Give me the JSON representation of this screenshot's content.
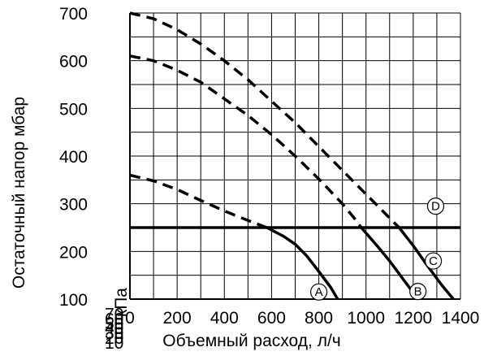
{
  "chart_data": {
    "type": "line",
    "title": "",
    "xlabel": "Объемный расход, л/ч",
    "ylabel": "Остаточный напор мбар",
    "ylabel_kpa": "кПа",
    "xlim": [
      0,
      1400
    ],
    "ylim": [
      100,
      700
    ],
    "x_ticks": [
      0,
      200,
      400,
      600,
      800,
      1000,
      1200,
      1400
    ],
    "y_ticks_mbar": [
      100,
      200,
      300,
      400,
      500,
      600,
      700
    ],
    "y_ticks_kpa": [
      10,
      20,
      30,
      40,
      50,
      60,
      70
    ],
    "grid": true,
    "threshold": {
      "y": 250,
      "style": "solid"
    },
    "series": [
      {
        "name": "A",
        "label_at": {
          "x": 800,
          "y": 115
        },
        "points": [
          [
            0,
            360
          ],
          [
            100,
            348
          ],
          [
            200,
            330
          ],
          [
            300,
            307
          ],
          [
            400,
            285
          ],
          [
            500,
            265
          ],
          [
            580,
            250
          ],
          [
            650,
            232
          ],
          [
            700,
            215
          ],
          [
            750,
            190
          ],
          [
            800,
            158
          ],
          [
            850,
            125
          ],
          [
            880,
            100
          ]
        ],
        "dashed_until_x": 580
      },
      {
        "name": "B",
        "label_at": {
          "x": 1220,
          "y": 116
        },
        "points": [
          [
            0,
            610
          ],
          [
            100,
            600
          ],
          [
            200,
            580
          ],
          [
            300,
            555
          ],
          [
            400,
            520
          ],
          [
            500,
            485
          ],
          [
            600,
            445
          ],
          [
            700,
            400
          ],
          [
            800,
            352
          ],
          [
            900,
            300
          ],
          [
            950,
            270
          ],
          [
            980,
            250
          ],
          [
            1050,
            210
          ],
          [
            1100,
            180
          ],
          [
            1160,
            140
          ],
          [
            1220,
            100
          ]
        ],
        "dashed_until_x": 980
      },
      {
        "name": "C",
        "label_at": {
          "x": 1285,
          "y": 180
        },
        "points": [
          [
            0,
            700
          ],
          [
            100,
            688
          ],
          [
            200,
            665
          ],
          [
            300,
            635
          ],
          [
            400,
            600
          ],
          [
            500,
            560
          ],
          [
            600,
            515
          ],
          [
            700,
            470
          ],
          [
            800,
            420
          ],
          [
            900,
            370
          ],
          [
            1000,
            320
          ],
          [
            1080,
            280
          ],
          [
            1140,
            250
          ],
          [
            1200,
            212
          ],
          [
            1260,
            170
          ],
          [
            1320,
            130
          ],
          [
            1370,
            100
          ]
        ],
        "dashed_until_x": 1140
      },
      {
        "name": "D",
        "label_at": {
          "x": 1295,
          "y": 295
        },
        "points": [],
        "dashed_until_x": null
      }
    ]
  }
}
